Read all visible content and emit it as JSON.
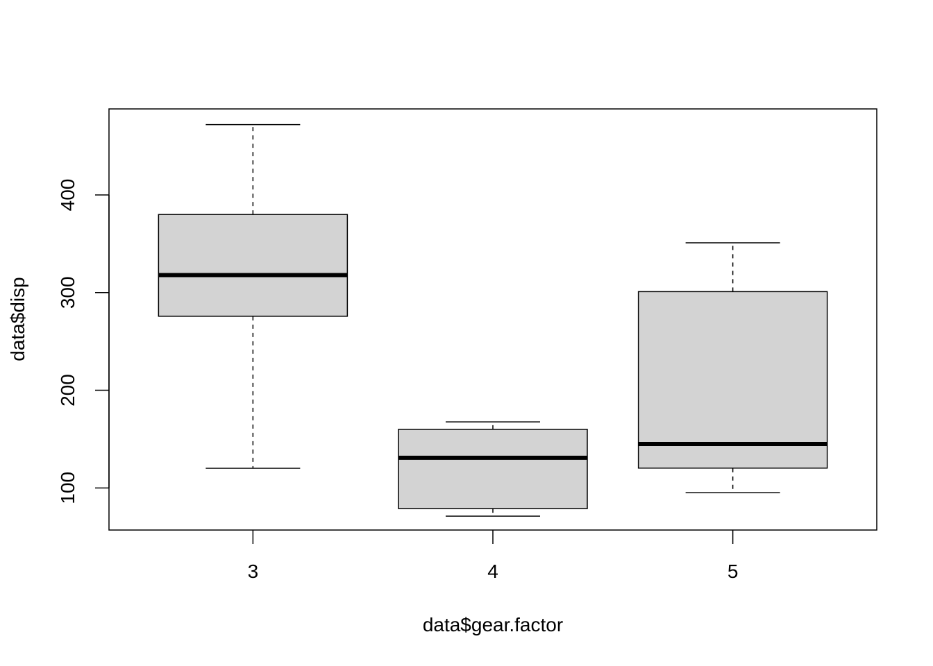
{
  "chart_data": {
    "type": "boxplot",
    "title": "",
    "xlabel": "data$gear.factor",
    "ylabel": "data$disp",
    "categories": [
      "3",
      "4",
      "5"
    ],
    "boxes": [
      {
        "category": "3",
        "whisker_low": 120.1,
        "q1": 275.8,
        "median": 318.0,
        "q3": 380.0,
        "whisker_high": 472.0
      },
      {
        "category": "4",
        "whisker_low": 71.1,
        "q1": 78.85,
        "median": 130.9,
        "q3": 160.0,
        "whisker_high": 167.6
      },
      {
        "category": "5",
        "whisker_low": 95.1,
        "q1": 120.3,
        "median": 145.0,
        "q3": 301.0,
        "whisker_high": 351.0
      }
    ],
    "y_ticks": [
      100,
      200,
      300,
      400
    ],
    "ylim": [
      56.9,
      488.1
    ],
    "grid": false,
    "legend": "none",
    "colors": {
      "box_fill": "#d3d3d3",
      "stroke": "#000000"
    }
  }
}
